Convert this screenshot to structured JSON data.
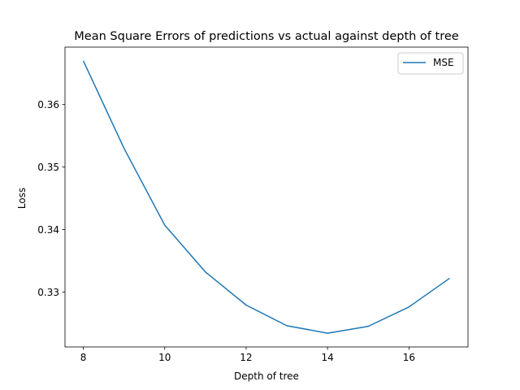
{
  "chart_data": {
    "type": "line",
    "title": "Mean Square Errors of predictions vs actual against depth of tree",
    "xlabel": "Depth of tree",
    "ylabel": "Loss",
    "xlim": [
      7.55,
      17.45
    ],
    "ylim": [
      0.3212,
      0.3692
    ],
    "xticks": [
      8,
      10,
      12,
      14,
      16
    ],
    "xtick_labels": [
      "8",
      "10",
      "12",
      "14",
      "16"
    ],
    "yticks": [
      0.33,
      0.34,
      0.35,
      0.36
    ],
    "ytick_labels": [
      "0.33",
      "0.34",
      "0.35",
      "0.36"
    ],
    "grid": false,
    "legend_position": "top-right",
    "series": [
      {
        "name": "MSE",
        "color": "#1f77b4",
        "x": [
          8,
          9,
          10,
          11,
          12,
          13,
          14,
          15,
          16,
          17
        ],
        "y": [
          0.367,
          0.353,
          0.3407,
          0.3332,
          0.3279,
          0.3246,
          0.3234,
          0.3245,
          0.3276,
          0.3322
        ]
      }
    ]
  }
}
